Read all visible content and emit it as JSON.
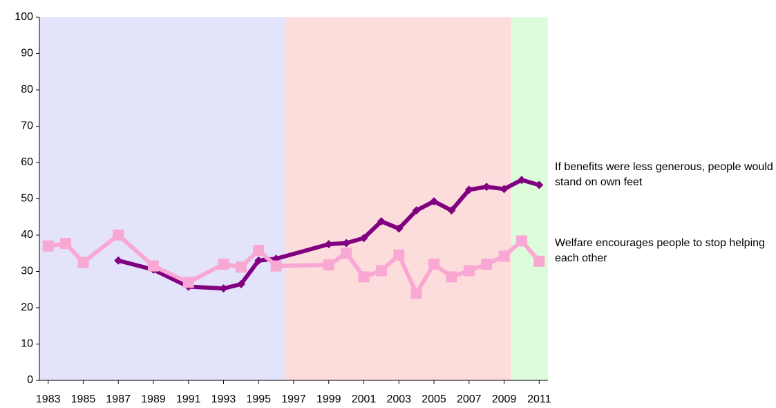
{
  "chart_data": {
    "type": "line",
    "xlim": [
      1982.5,
      2011.5
    ],
    "xticks": [
      1983,
      1985,
      1987,
      1989,
      1991,
      1993,
      1995,
      1997,
      1999,
      2001,
      2003,
      2005,
      2007,
      2009,
      2011
    ],
    "ylim": [
      0,
      100
    ],
    "yticks": [
      0,
      10,
      20,
      30,
      40,
      50,
      60,
      70,
      80,
      90,
      100
    ],
    "grid": false,
    "shaded_regions": [
      {
        "start": 1982.5,
        "end": 1996.5,
        "color": "#e3e3fc"
      },
      {
        "start": 1996.5,
        "end": 2009.4,
        "color": "#fddcdc"
      },
      {
        "start": 2009.4,
        "end": 2011.5,
        "color": "#dcfcdc"
      }
    ],
    "series": [
      {
        "name": "If benefits were less generous, people would stand on own feet",
        "color": "#800080",
        "marker": "diamond",
        "x": [
          1987,
          1989,
          1991,
          1993,
          1994,
          1995,
          1996,
          1999,
          2000,
          2001,
          2002,
          2003,
          2004,
          2005,
          2006,
          2007,
          2008,
          2009,
          2010,
          2011
        ],
        "values": [
          33,
          30.5,
          25.8,
          25.3,
          26.5,
          33,
          33.5,
          37.5,
          37.8,
          39.2,
          43.8,
          41.8,
          46.8,
          49.3,
          46.8,
          52.5,
          53.3,
          52.7,
          55.2,
          53.8
        ]
      },
      {
        "name": "Welfare encourages people to stop helping each other",
        "color": "#f9a8d4",
        "marker": "square",
        "x": [
          1983,
          1984,
          1985,
          1987,
          1989,
          1991,
          1993,
          1994,
          1995,
          1996,
          1999,
          2000,
          2001,
          2002,
          2003,
          2004,
          2005,
          2006,
          2007,
          2008,
          2009,
          2010,
          2011
        ],
        "values": [
          37,
          37.7,
          32.5,
          40,
          31.5,
          27,
          32,
          31.2,
          35.8,
          31.5,
          31.8,
          35,
          28.5,
          30.2,
          34.5,
          24,
          32,
          28.5,
          30.2,
          32,
          34.2,
          38.4,
          32.8
        ]
      }
    ]
  }
}
